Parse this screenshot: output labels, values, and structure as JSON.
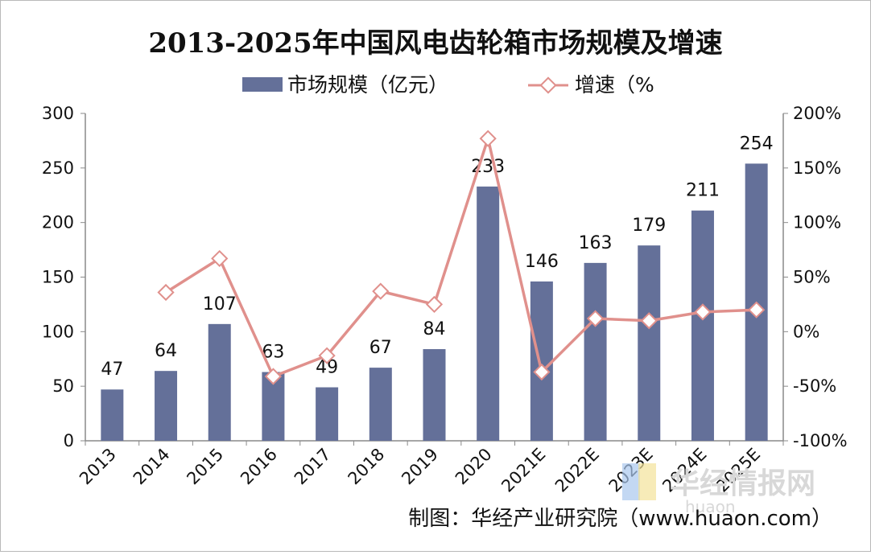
{
  "chart_data": {
    "type": "bar",
    "title": "2013-2025年中国风电齿轮箱市场规模及增速",
    "categories": [
      "2013",
      "2014",
      "2015",
      "2016",
      "2017",
      "2018",
      "2019",
      "2020",
      "2021E",
      "2022E",
      "2023E",
      "2024E",
      "2025E"
    ],
    "series": [
      {
        "name": "市场规模（亿元）",
        "type": "bar",
        "axis": "left",
        "color": "#647099",
        "values": [
          47,
          64,
          107,
          63,
          49,
          67,
          84,
          233,
          146,
          163,
          179,
          211,
          254
        ],
        "labels": [
          "47",
          "64",
          "107",
          "63",
          "49",
          "67",
          "84",
          "233",
          "146",
          "163",
          "179",
          "211",
          "254"
        ]
      },
      {
        "name": "增速（%",
        "type": "line",
        "axis": "right",
        "color": "#e0908c",
        "values": [
          null,
          36,
          67,
          -41,
          -22,
          37,
          25,
          177,
          -37,
          12,
          10,
          18,
          20
        ]
      }
    ],
    "y_left": {
      "min": 0,
      "max": 300,
      "ticks": [
        "0",
        "50",
        "100",
        "150",
        "200",
        "250",
        "300"
      ]
    },
    "y_right": {
      "min": -100,
      "max": 200,
      "ticks": [
        "-100%",
        "-50%",
        "0%",
        "50%",
        "100%",
        "150%",
        "200%"
      ]
    },
    "grid": false,
    "legend_position": "top-center"
  },
  "credit": "制图：华经产业研究院（www.huaon.com）",
  "watermark": {
    "text": "华经情报网",
    "sub": "huaon"
  }
}
